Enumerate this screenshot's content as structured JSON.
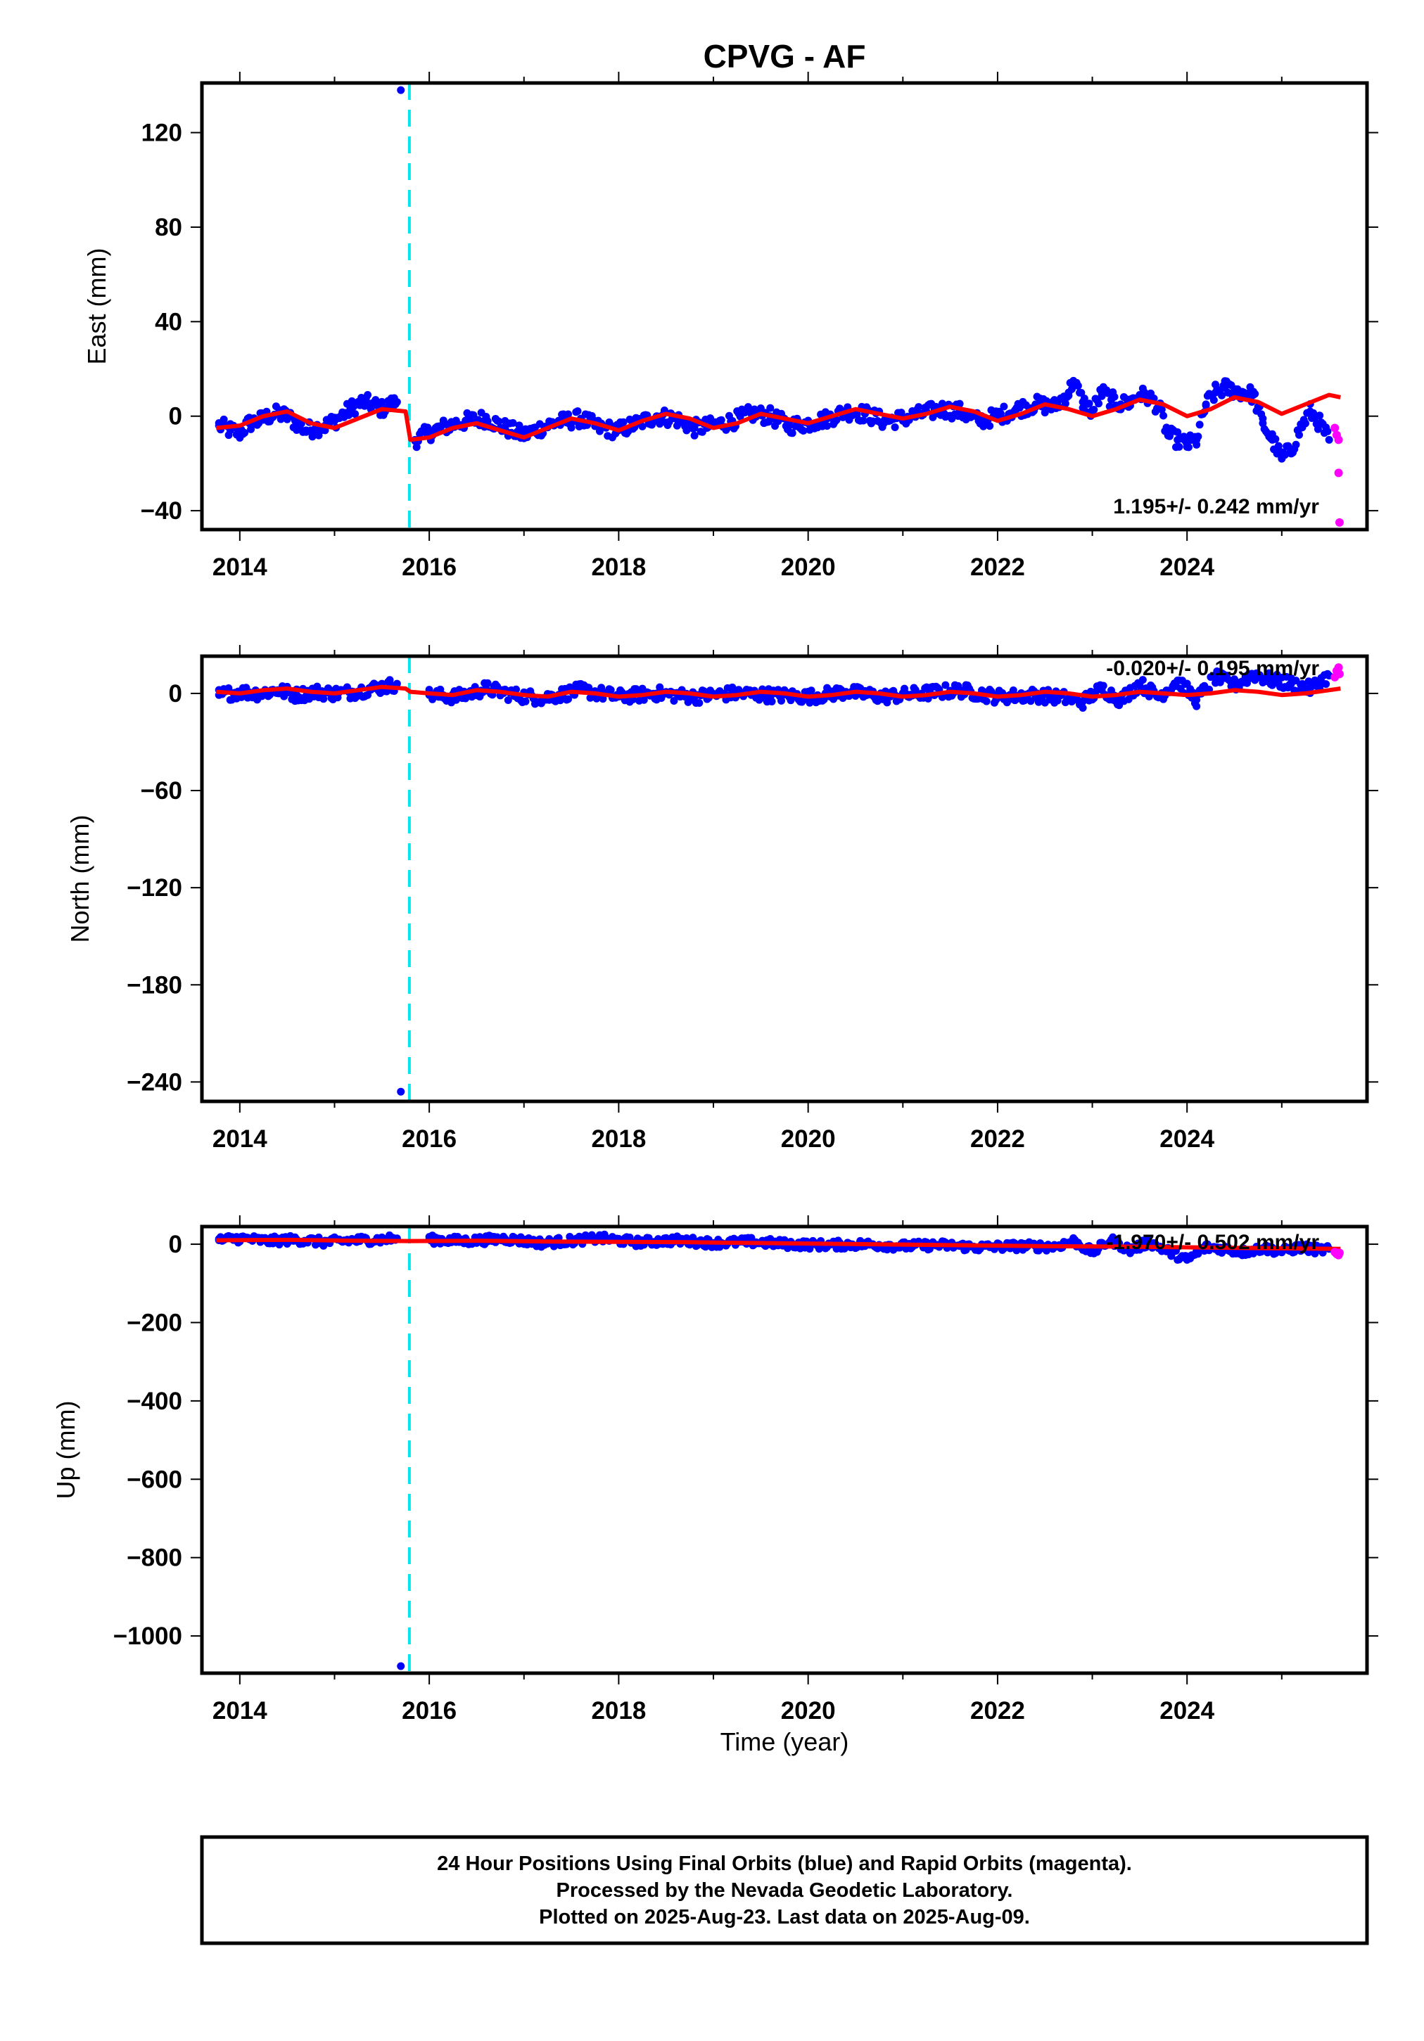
{
  "title": "CPVG - AF",
  "colors": {
    "final": "#0000ff",
    "rapid": "#ff00ff",
    "model": "#ff0000",
    "offset_line": "#00e5ee",
    "frame": "#000000"
  },
  "footer": {
    "line1": "24 Hour Positions Using Final Orbits (blue) and Rapid Orbits (magenta).",
    "line2": "Processed by the Nevada Geodetic Laboratory.",
    "line3": "Plotted on 2025-Aug-23. Last data on 2025-Aug-09."
  },
  "chart_data": [
    {
      "type": "scatter",
      "component": "east",
      "ylabel": "East (mm)",
      "xlabel": "",
      "xlim": [
        2013.6,
        2025.9
      ],
      "ylim": [
        -48,
        141
      ],
      "yticks": [
        -40,
        0,
        40,
        80,
        120
      ],
      "xticks": [
        2014,
        2016,
        2018,
        2020,
        2022,
        2024
      ],
      "rate_label": "1.195+/- 0.242 mm/yr",
      "offset_epoch": 2015.79,
      "series": [
        {
          "role": "final",
          "x": [
            2013.78,
            2013.9,
            2014.0,
            2014.1,
            2014.2,
            2014.3,
            2014.4,
            2014.5,
            2014.6,
            2014.7,
            2014.8,
            2014.9,
            2015.0,
            2015.1,
            2015.2,
            2015.3,
            2015.4,
            2015.5,
            2015.6,
            2015.66,
            2015.7,
            2015.85,
            2016.0,
            2016.2,
            2016.4,
            2016.6,
            2016.8,
            2017.0,
            2017.3,
            2017.6,
            2017.8,
            2018.0,
            2018.2,
            2018.4,
            2018.6,
            2018.8,
            2019.0,
            2019.2,
            2019.4,
            2019.6,
            2019.8,
            2020.0,
            2020.2,
            2020.4,
            2020.6,
            2020.8,
            2021.0,
            2021.2,
            2021.4,
            2021.6,
            2021.8,
            2022.0,
            2022.2,
            2022.4,
            2022.6,
            2022.75,
            2022.8,
            2022.9,
            2023.0,
            2023.1,
            2023.2,
            2023.3,
            2023.4,
            2023.5,
            2023.6,
            2023.7,
            2023.8,
            2023.9,
            2024.0,
            2024.1,
            2024.2,
            2024.3,
            2024.4,
            2024.5,
            2024.6,
            2024.7,
            2024.8,
            2024.9,
            2025.0,
            2025.1,
            2025.2,
            2025.3,
            2025.4,
            2025.5
          ],
          "y": [
            -4,
            -6,
            -7,
            -3,
            -2,
            0,
            1,
            0,
            -3,
            -6,
            -5,
            -4,
            -2,
            1,
            4,
            6,
            5,
            3,
            5,
            6,
            138,
            -10,
            -7,
            -4,
            -2,
            -1,
            -5,
            -8,
            -3,
            -1,
            -5,
            -6,
            -3,
            0,
            -1,
            -5,
            -4,
            -2,
            1,
            0,
            -4,
            -3,
            -1,
            2,
            1,
            -2,
            -1,
            1,
            3,
            2,
            -2,
            0,
            3,
            5,
            4,
            10,
            15,
            6,
            2,
            10,
            7,
            5,
            6,
            9,
            8,
            4,
            -8,
            -10,
            -12,
            -10,
            5,
            10,
            12,
            11,
            10,
            9,
            -3,
            -10,
            -18,
            -14,
            -5,
            2,
            -3,
            -10
          ]
        },
        {
          "role": "rapid",
          "x": [
            2025.56,
            2025.58,
            2025.6,
            2025.6,
            2025.61
          ],
          "y": [
            -5,
            -8,
            -10,
            -24,
            -45
          ]
        }
      ],
      "model": {
        "x": [
          2013.75,
          2014.0,
          2014.25,
          2014.5,
          2014.75,
          2015.0,
          2015.25,
          2015.5,
          2015.75,
          2015.8,
          2016.0,
          2016.25,
          2016.5,
          2016.75,
          2017.0,
          2017.25,
          2017.5,
          2017.75,
          2018.0,
          2018.25,
          2018.5,
          2018.75,
          2019.0,
          2019.25,
          2019.5,
          2019.75,
          2020.0,
          2020.25,
          2020.5,
          2020.75,
          2021.0,
          2021.25,
          2021.5,
          2021.75,
          2022.0,
          2022.25,
          2022.5,
          2022.75,
          2023.0,
          2023.25,
          2023.5,
          2023.75,
          2024.0,
          2024.25,
          2024.5,
          2024.75,
          2025.0,
          2025.25,
          2025.5,
          2025.62
        ],
        "y": [
          -5,
          -4,
          0,
          2,
          -3,
          -5,
          -1,
          3,
          2,
          -10,
          -9,
          -5,
          -3,
          -6,
          -9,
          -5,
          -1,
          -3,
          -6,
          -2,
          1,
          -1,
          -5,
          -3,
          1,
          -1,
          -3,
          0,
          3,
          1,
          -1,
          1,
          4,
          2,
          -2,
          1,
          5,
          3,
          0,
          3,
          7,
          5,
          0,
          3,
          8,
          6,
          1,
          5,
          9,
          8
        ]
      }
    },
    {
      "type": "scatter",
      "component": "north",
      "ylabel": "North (mm)",
      "xlabel": "",
      "xlim": [
        2013.6,
        2025.9
      ],
      "ylim": [
        -252,
        23
      ],
      "yticks": [
        -240,
        -180,
        -120,
        -60,
        0
      ],
      "xticks": [
        2014,
        2016,
        2018,
        2020,
        2022,
        2024
      ],
      "rate_label": "-0.020+/- 0.195 mm/yr",
      "offset_epoch": 2015.79,
      "series": [
        {
          "role": "final",
          "x": [
            2013.78,
            2014.0,
            2014.2,
            2014.4,
            2014.6,
            2014.8,
            2015.0,
            2015.2,
            2015.4,
            2015.6,
            2015.66,
            2015.7,
            2016.0,
            2016.3,
            2016.6,
            2016.9,
            2017.2,
            2017.6,
            2018.0,
            2018.4,
            2018.8,
            2019.2,
            2019.6,
            2020.0,
            2020.4,
            2020.8,
            2021.2,
            2021.6,
            2022.0,
            2022.4,
            2022.75,
            2022.9,
            2023.1,
            2023.3,
            2023.5,
            2023.7,
            2023.9,
            2024.1,
            2024.3,
            2024.5,
            2024.7,
            2024.9,
            2025.1,
            2025.3,
            2025.5
          ],
          "y": [
            -1,
            1,
            0,
            2,
            -1,
            1,
            0,
            1,
            3,
            5,
            6,
            -246,
            -1,
            -2,
            3,
            -1,
            -3,
            2,
            -2,
            0,
            -2,
            0,
            -1,
            -2,
            1,
            -2,
            0,
            2,
            -2,
            -1,
            -3,
            -5,
            3,
            -4,
            6,
            -2,
            8,
            -4,
            10,
            5,
            12,
            8,
            6,
            3,
            11
          ]
        },
        {
          "role": "rapid",
          "x": [
            2025.56,
            2025.58,
            2025.6,
            2025.61
          ],
          "y": [
            10,
            14,
            16,
            12
          ]
        }
      ],
      "model": {
        "x": [
          2013.75,
          2014.0,
          2014.25,
          2014.5,
          2014.75,
          2015.0,
          2015.25,
          2015.5,
          2015.75,
          2015.8,
          2016.0,
          2016.25,
          2016.5,
          2016.75,
          2017.0,
          2017.25,
          2017.5,
          2017.75,
          2018.0,
          2018.25,
          2018.5,
          2018.75,
          2019.0,
          2019.25,
          2019.5,
          2019.75,
          2020.0,
          2020.25,
          2020.5,
          2020.75,
          2021.0,
          2021.25,
          2021.5,
          2021.75,
          2022.0,
          2022.25,
          2022.5,
          2022.75,
          2023.0,
          2023.25,
          2023.5,
          2023.75,
          2024.0,
          2024.25,
          2024.5,
          2024.75,
          2025.0,
          2025.25,
          2025.5,
          2025.62
        ],
        "y": [
          1,
          0,
          2,
          3,
          1,
          0,
          2,
          4,
          3,
          1,
          0,
          -1,
          2,
          1,
          -1,
          -2,
          1,
          0,
          -2,
          -1,
          1,
          0,
          -2,
          -1,
          1,
          0,
          -2,
          -1,
          1,
          0,
          -2,
          -1,
          1,
          0,
          -2,
          -1,
          1,
          0,
          -2,
          -1,
          1,
          0,
          -1,
          0,
          2,
          1,
          -1,
          0,
          2,
          3
        ]
      }
    },
    {
      "type": "scatter",
      "component": "up",
      "ylabel": "Up (mm)",
      "xlabel": "Time (year)",
      "xlim": [
        2013.6,
        2025.9
      ],
      "ylim": [
        -1095,
        45
      ],
      "yticks": [
        -1000,
        -800,
        -600,
        -400,
        -200,
        0
      ],
      "xticks": [
        2014,
        2016,
        2018,
        2020,
        2022,
        2024
      ],
      "rate_label": "-1.970+/- 0.502 mm/yr",
      "offset_epoch": 2015.79,
      "series": [
        {
          "role": "final",
          "x": [
            2013.78,
            2014.0,
            2014.3,
            2014.6,
            2014.9,
            2015.2,
            2015.5,
            2015.66,
            2015.7,
            2016.0,
            2016.4,
            2016.8,
            2017.2,
            2017.8,
            2018.2,
            2018.6,
            2019.0,
            2019.4,
            2019.8,
            2020.2,
            2020.6,
            2021.0,
            2021.4,
            2021.8,
            2022.2,
            2022.6,
            2022.8,
            2023.0,
            2023.2,
            2023.4,
            2023.6,
            2023.8,
            2024.0,
            2024.2,
            2024.4,
            2024.6,
            2024.8,
            2025.0,
            2025.2,
            2025.4,
            2025.5
          ],
          "y": [
            10,
            15,
            8,
            12,
            5,
            10,
            12,
            15,
            -1077,
            12,
            8,
            14,
            3,
            15,
            5,
            10,
            3,
            6,
            0,
            -2,
            0,
            -5,
            -2,
            -8,
            -5,
            -6,
            8,
            -20,
            10,
            -15,
            5,
            -18,
            -40,
            -8,
            -12,
            -20,
            -10,
            -18,
            -8,
            -15,
            -12
          ]
        },
        {
          "role": "rapid",
          "x": [
            2025.56,
            2025.58,
            2025.6,
            2025.61
          ],
          "y": [
            -20,
            -25,
            -28,
            -22
          ]
        }
      ],
      "model": {
        "x": [
          2013.75,
          2014.5,
          2015.25,
          2015.8,
          2016.5,
          2017.25,
          2018.0,
          2018.75,
          2019.5,
          2020.25,
          2021.0,
          2021.75,
          2022.5,
          2023.25,
          2024.0,
          2024.75,
          2025.62
        ],
        "y": [
          10,
          11,
          9,
          8,
          9,
          7,
          6,
          5,
          3,
          1,
          -1,
          -3,
          -5,
          -6,
          -8,
          -10,
          -12
        ]
      }
    }
  ]
}
